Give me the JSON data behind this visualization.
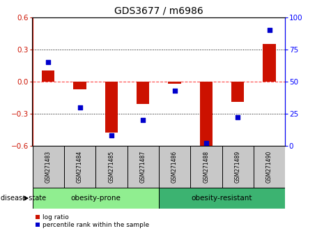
{
  "title": "GDS3677 / m6986",
  "samples": [
    "GSM271483",
    "GSM271484",
    "GSM271485",
    "GSM271487",
    "GSM271486",
    "GSM271488",
    "GSM271489",
    "GSM271490"
  ],
  "log_ratio": [
    0.1,
    -0.07,
    -0.48,
    -0.21,
    -0.02,
    -0.62,
    -0.19,
    0.35
  ],
  "percentile_rank": [
    65,
    30,
    8,
    20,
    43,
    2,
    22,
    90
  ],
  "groups": [
    {
      "label": "obesity-prone",
      "indices": [
        0,
        1,
        2,
        3
      ],
      "color": "#90EE90"
    },
    {
      "label": "obesity-resistant",
      "indices": [
        4,
        5,
        6,
        7
      ],
      "color": "#3CB371"
    }
  ],
  "ylim_left": [
    -0.6,
    0.6
  ],
  "ylim_right": [
    0,
    100
  ],
  "yticks_left": [
    -0.6,
    -0.3,
    0.0,
    0.3,
    0.6
  ],
  "yticks_right": [
    0,
    25,
    50,
    75,
    100
  ],
  "bar_color": "#CC1100",
  "dot_color": "#0000CC",
  "zero_line_color": "#FF4444",
  "title_fontsize": 10,
  "disease_state_label": "disease state",
  "legend_log_ratio": "log ratio",
  "legend_percentile": "percentile rank within the sample",
  "sample_box_color": "#C8C8C8",
  "bar_width": 0.4
}
